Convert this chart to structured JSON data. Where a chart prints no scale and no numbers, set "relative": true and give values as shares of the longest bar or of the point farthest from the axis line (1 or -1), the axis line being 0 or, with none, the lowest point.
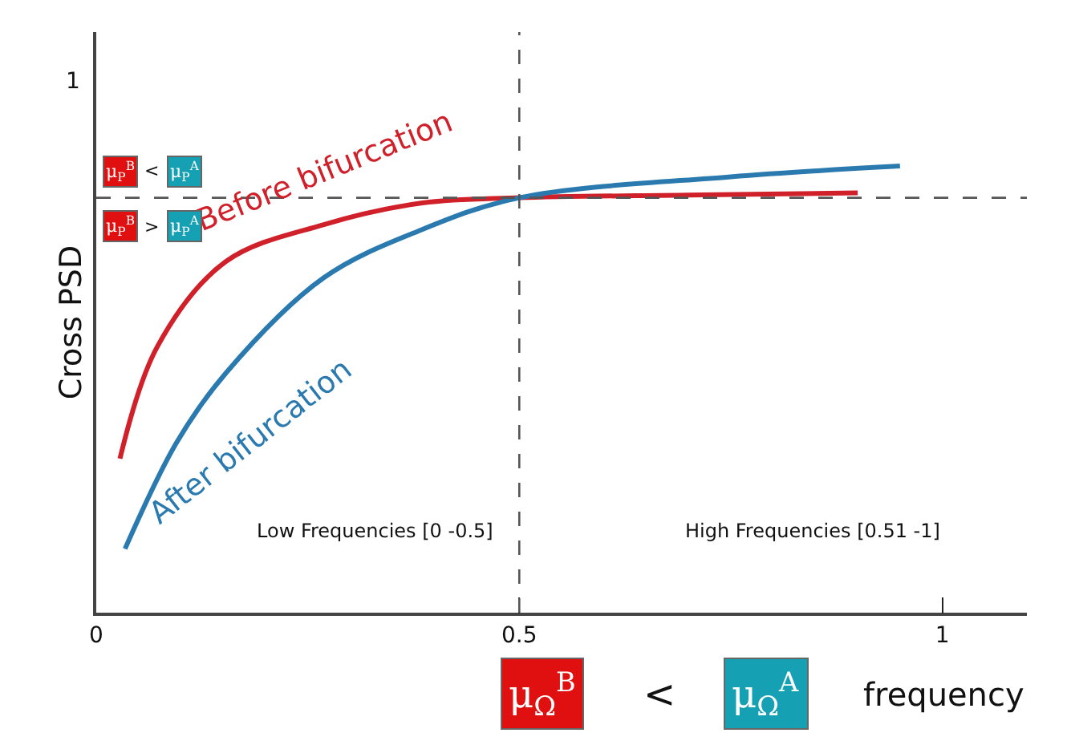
{
  "chart_data": {
    "type": "line",
    "xlabel": "frequency",
    "ylabel": "Cross PSD",
    "x": [
      0.028,
      0.072,
      0.153,
      0.269,
      0.384,
      0.5,
      0.7,
      0.9
    ],
    "series": [
      {
        "name": "Before bifurcation",
        "color": "#d0202a",
        "values": [
          0.345,
          0.595,
          0.786,
          0.869,
          0.917,
          0.929,
          0.935,
          0.94
        ]
      },
      {
        "name": "After bifurcation",
        "color": "#2a7ab0",
        "x": [
          0.034,
          0.095,
          0.153,
          0.269,
          0.384,
          0.5,
          0.75,
          0.95
        ],
        "values": [
          0.143,
          0.381,
          0.536,
          0.75,
          0.857,
          0.929,
          0.976,
          1
        ]
      }
    ],
    "relative": true,
    "xlim": [
      0,
      1.1
    ],
    "xticks": [
      0,
      0.5,
      1
    ],
    "ref_lines": [
      {
        "axis": "y",
        "value": 0.929,
        "label": null,
        "line_style": "dashed",
        "color": "#555555"
      },
      {
        "axis": "x",
        "value": 0.5,
        "label": null,
        "line_style": "dashed",
        "color": "#555555"
      }
    ],
    "annotations": [
      "1",
      "Low Frequencies [0 -0.5]",
      "High Frequencies [0.51 -1]",
      "μ$_{P}$$^{B}$",
      "<",
      "μ$_{P}$$^{A}$",
      "μ$_{P}$$^{B}$",
      ">",
      "μ$_{P}$$^{A}$",
      "μ$_{Ω}$$^{B}$",
      "<",
      "μ$_{Ω}$$^{A}$"
    ],
    "legend": false,
    "marker": "none",
    "line_style": "solid"
  }
}
